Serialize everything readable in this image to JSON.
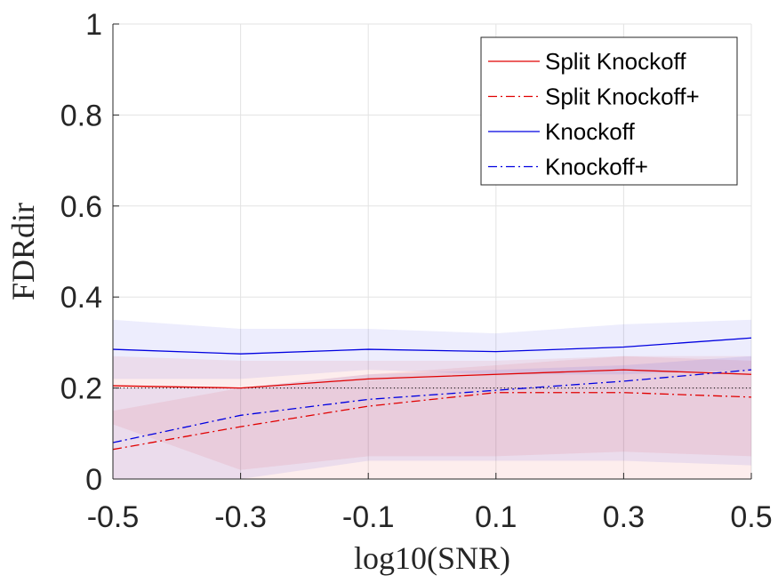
{
  "chart_data": {
    "type": "line",
    "title": "",
    "xlabel": "log10(SNR)",
    "ylabel": "FDRdir",
    "x": [
      -0.5,
      -0.3,
      -0.1,
      0.1,
      0.3,
      0.5
    ],
    "x_tick_labels": [
      "-0.5",
      "-0.3",
      "-0.1",
      "0.1",
      "0.3",
      "0.5"
    ],
    "xlim": [
      -0.5,
      0.5
    ],
    "ylim": [
      0,
      1
    ],
    "y_ticks": [
      0,
      0.2,
      0.4,
      0.6,
      0.8,
      1
    ],
    "y_tick_labels": [
      "0",
      "0.2",
      "0.4",
      "0.6",
      "0.8",
      "1"
    ],
    "grid": true,
    "legend_position": "top-right",
    "reference_line": {
      "y": 0.2,
      "style": "dotted",
      "color": "#000000"
    },
    "series": [
      {
        "name": "Split Knockoff",
        "color": "#e00000",
        "dash": "solid",
        "values": [
          0.205,
          0.2,
          0.22,
          0.23,
          0.24,
          0.23
        ],
        "band_upper": [
          0.27,
          0.26,
          0.26,
          0.26,
          0.27,
          0.27
        ],
        "band_lower": [
          0.12,
          0.02,
          0.05,
          0.05,
          0.06,
          0.05
        ]
      },
      {
        "name": "Split Knockoff+",
        "color": "#e00000",
        "dash": "dashdot",
        "values": [
          0.065,
          0.115,
          0.16,
          0.19,
          0.19,
          0.18
        ],
        "band_upper": [
          0.15,
          0.2,
          0.23,
          0.25,
          0.27,
          0.26
        ],
        "band_lower": [
          0,
          0,
          0,
          0,
          0,
          0
        ]
      },
      {
        "name": "Knockoff",
        "color": "#0000e0",
        "dash": "solid",
        "values": [
          0.285,
          0.275,
          0.285,
          0.28,
          0.29,
          0.31
        ],
        "band_upper": [
          0.35,
          0.33,
          0.33,
          0.32,
          0.34,
          0.35
        ],
        "band_lower": [
          0.22,
          0.22,
          0.24,
          0.23,
          0.23,
          0.24
        ]
      },
      {
        "name": "Knockoff+",
        "color": "#0000e0",
        "dash": "dashdot",
        "values": [
          0.08,
          0.14,
          0.175,
          0.195,
          0.215,
          0.24
        ],
        "band_upper": [
          0.2,
          0.2,
          0.23,
          0.24,
          0.25,
          0.27
        ],
        "band_lower": [
          0,
          0,
          0.04,
          0.04,
          0.04,
          0.03
        ]
      }
    ]
  }
}
